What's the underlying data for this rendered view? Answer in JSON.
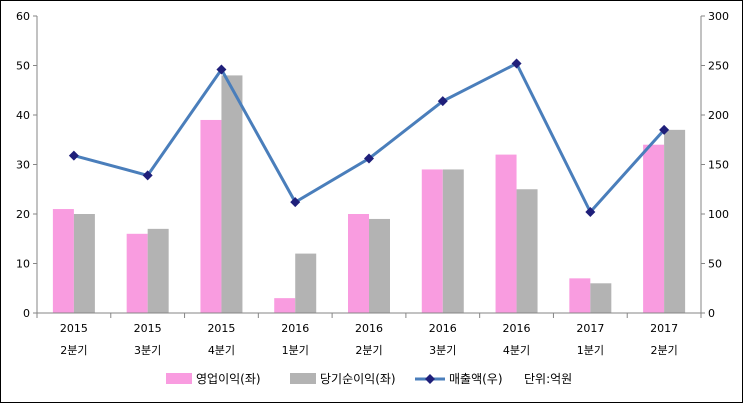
{
  "chart_data": {
    "type": "bar",
    "categories": [
      [
        "2015",
        "2분기"
      ],
      [
        "2015",
        "3분기"
      ],
      [
        "2015",
        "4분기"
      ],
      [
        "2016",
        "1분기"
      ],
      [
        "2016",
        "2분기"
      ],
      [
        "2016",
        "3분기"
      ],
      [
        "2016",
        "4분기"
      ],
      [
        "2017",
        "1분기"
      ],
      [
        "2017",
        "2분기"
      ]
    ],
    "series": [
      {
        "name": "영업이익(좌)",
        "type": "bar",
        "axis": "left",
        "color": "#f99ce0",
        "values": [
          21,
          16,
          39,
          3,
          20,
          29,
          32,
          7,
          34
        ]
      },
      {
        "name": "당기순이익(좌)",
        "type": "bar",
        "axis": "left",
        "color": "#b3b3b3",
        "values": [
          20,
          17,
          48,
          12,
          19,
          29,
          25,
          6,
          37
        ]
      },
      {
        "name": "매출액(우)",
        "type": "line",
        "axis": "right",
        "color": "#4a7ebb",
        "marker_color": "#1f1f7a",
        "values": [
          159,
          139,
          246,
          112,
          156,
          214,
          252,
          102,
          185
        ]
      }
    ],
    "left_axis": {
      "min": 0,
      "max": 60,
      "step": 10
    },
    "right_axis": {
      "min": 0,
      "max": 300,
      "step": 50
    },
    "unit_note": "단위:억원",
    "legend_position": "bottom"
  }
}
